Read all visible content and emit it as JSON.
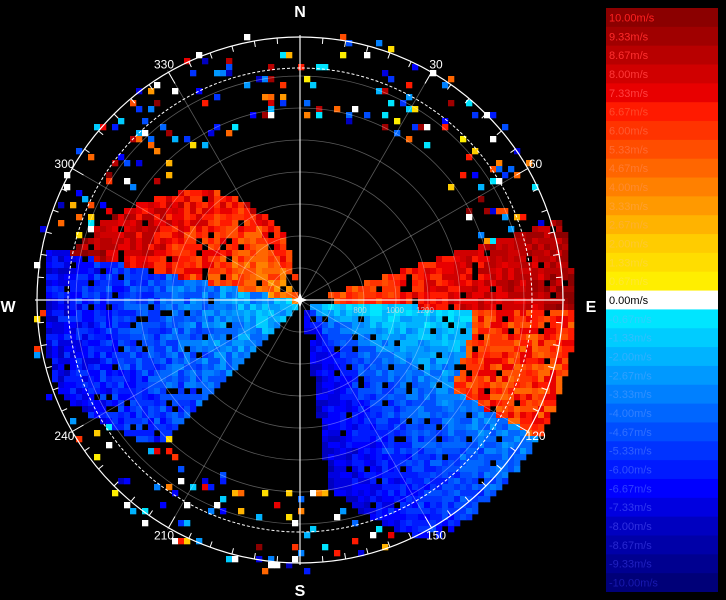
{
  "display": {
    "cardinals": [
      {
        "id": "n",
        "label": "N",
        "azimuth": 0
      },
      {
        "id": "e",
        "label": "E",
        "azimuth": 90
      },
      {
        "id": "s",
        "label": "S",
        "azimuth": 180
      },
      {
        "id": "w",
        "label": "W",
        "azimuth": 270
      }
    ],
    "azimuth_labels": [
      {
        "label": "30",
        "azimuth": 30
      },
      {
        "label": "60",
        "azimuth": 60
      },
      {
        "label": "120",
        "azimuth": 120
      },
      {
        "label": "150",
        "azimuth": 150
      },
      {
        "label": "210",
        "azimuth": 210
      },
      {
        "label": "240",
        "azimuth": 240
      },
      {
        "label": "300",
        "azimuth": 300
      },
      {
        "label": "330",
        "azimuth": 330
      }
    ],
    "range_labels": [
      "800",
      "1000",
      "1200"
    ],
    "colors": {
      "background": "#000000",
      "grid": "#ffffff",
      "zero_band": "#ffffff"
    }
  },
  "legend": {
    "unit": "m/s",
    "entries": [
      {
        "label": "10.00m/s",
        "color": "#8b0000",
        "text": "#ff2020"
      },
      {
        "label": "9.33m/s",
        "color": "#a00000",
        "text": "#ff2a2a"
      },
      {
        "label": "8.67m/s",
        "color": "#b80000",
        "text": "#ff3030"
      },
      {
        "label": "8.00m/s",
        "color": "#d00000",
        "text": "#ff3838"
      },
      {
        "label": "7.33m/s",
        "color": "#e80000",
        "text": "#ff4040"
      },
      {
        "label": "6.67m/s",
        "color": "#ff1a00",
        "text": "#ff4a2a"
      },
      {
        "label": "6.00m/s",
        "color": "#ff3300",
        "text": "#ff5a30"
      },
      {
        "label": "5.33m/s",
        "color": "#ff4d00",
        "text": "#ff6a30"
      },
      {
        "label": "4.67m/s",
        "color": "#ff6600",
        "text": "#ff7a30"
      },
      {
        "label": "4.00m/s",
        "color": "#ff8000",
        "text": "#ff8a30"
      },
      {
        "label": "3.33m/s",
        "color": "#ff9900",
        "text": "#ffa030"
      },
      {
        "label": "2.67m/s",
        "color": "#ffb300",
        "text": "#ffb030"
      },
      {
        "label": "2.00m/s",
        "color": "#ffcc00",
        "text": "#ffc830"
      },
      {
        "label": "1.33m/s",
        "color": "#ffdd00",
        "text": "#ffd830"
      },
      {
        "label": "0.67m/s",
        "color": "#ffee00",
        "text": "#ffe830"
      },
      {
        "label": "0.00m/s",
        "color": "#ffffff",
        "text": "#ffffff"
      },
      {
        "label": "-0.67m/s",
        "color": "#00e5ff",
        "text": "#30d0ff"
      },
      {
        "label": "-1.33m/s",
        "color": "#00ccff",
        "text": "#30c0ff"
      },
      {
        "label": "-2.00m/s",
        "color": "#00b3ff",
        "text": "#30b0ff"
      },
      {
        "label": "-2.67m/s",
        "color": "#0099ff",
        "text": "#30a0ff"
      },
      {
        "label": "-3.33m/s",
        "color": "#0080ff",
        "text": "#3090ff"
      },
      {
        "label": "-4.00m/s",
        "color": "#0066ff",
        "text": "#3080ff"
      },
      {
        "label": "-4.67m/s",
        "color": "#004dff",
        "text": "#3070ff"
      },
      {
        "label": "-5.33m/s",
        "color": "#0033ff",
        "text": "#3060ff"
      },
      {
        "label": "-6.00m/s",
        "color": "#001aff",
        "text": "#3050ff"
      },
      {
        "label": "-6.67m/s",
        "color": "#0000ff",
        "text": "#3040ff"
      },
      {
        "label": "-7.33m/s",
        "color": "#0000e0",
        "text": "#3038f0"
      },
      {
        "label": "-8.00m/s",
        "color": "#0000c0",
        "text": "#3030e0"
      },
      {
        "label": "-8.67m/s",
        "color": "#0000a8",
        "text": "#2828d0"
      },
      {
        "label": "-9.33m/s",
        "color": "#000090",
        "text": "#2020c0"
      },
      {
        "label": "-10.00m/s",
        "color": "#000078",
        "text": "#1818b0"
      }
    ]
  }
}
